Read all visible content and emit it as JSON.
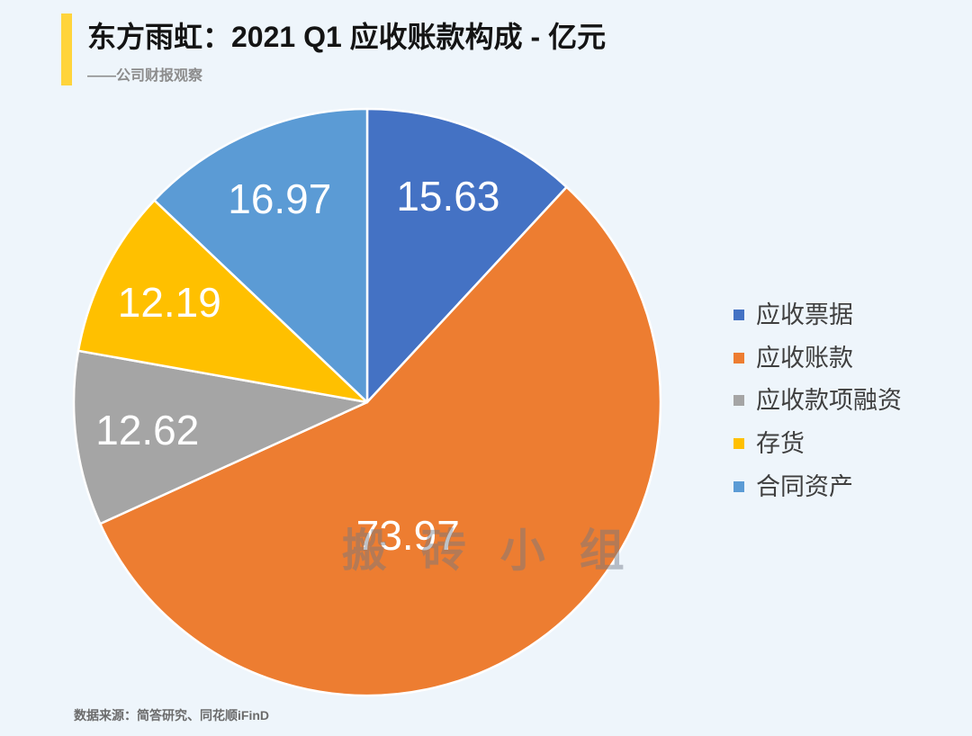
{
  "header": {
    "subtitle": "——公司财报观察"
  },
  "footer": {
    "source": "数据来源：简答研究、同花顺iFinD"
  },
  "watermark": "搬 砖 小 组",
  "colors": {
    "accent_bar": "#FFD43B",
    "background": "#EEF5FB",
    "slice_border": "#FFFFFF"
  },
  "chart_data": {
    "type": "pie",
    "title": "东方雨虹：2021 Q1 应收账款构成 - 亿元",
    "categories": [
      "应收票据",
      "应收账款",
      "应收款项融资",
      "存货",
      "合同资产"
    ],
    "values": [
      15.63,
      73.97,
      12.62,
      12.19,
      16.97
    ],
    "data_labels": [
      "15.63",
      "73.97",
      "12.62",
      "12.19",
      "16.97"
    ],
    "colors": [
      "#4472C4",
      "#ED7D31",
      "#A5A5A5",
      "#FFC000",
      "#5B9BD5"
    ]
  }
}
